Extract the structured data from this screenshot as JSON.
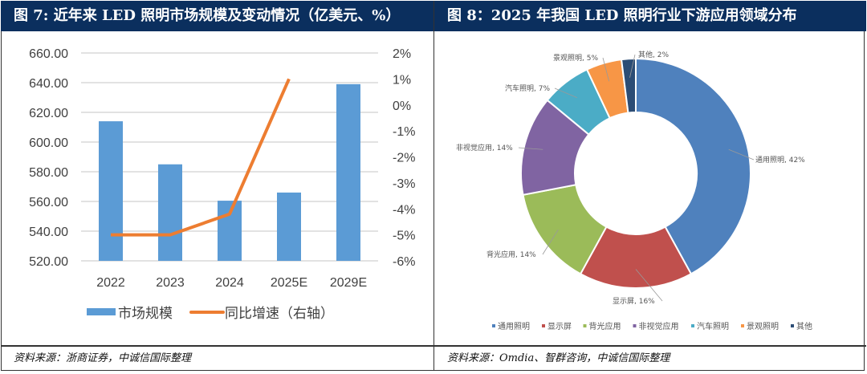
{
  "left": {
    "title": "图 7: 近年来 LED 照明市场规模及变动情况（亿美元、%）",
    "source": "资料来源：浙商证券，中诚信国际整理"
  },
  "right": {
    "title": "图 8：2025 年我国 LED 照明行业下游应用领域分布",
    "source": "资料来源：Omdia、智群咨询，中诚信国际整理"
  },
  "chart_data": [
    {
      "type": "bar+line",
      "categories": [
        "2022",
        "2023",
        "2024",
        "2025E",
        "2029E"
      ],
      "series": [
        {
          "name": "市场规模",
          "type": "bar",
          "axis": "left",
          "color": "#5b9bd5",
          "values": [
            614,
            585,
            560.5,
            566,
            639
          ]
        },
        {
          "name": "同比增速（右轴）",
          "type": "line",
          "axis": "right",
          "color": "#ed7d31",
          "values": [
            -5.0,
            -5.0,
            -4.2,
            1.0,
            null
          ]
        }
      ],
      "y_left": {
        "range": [
          520,
          660
        ],
        "ticks": [
          "520.00",
          "540.00",
          "560.00",
          "580.00",
          "600.00",
          "620.00",
          "640.00",
          "660.00"
        ]
      },
      "y_right": {
        "range": [
          -6,
          2
        ],
        "ticks": [
          "-6%",
          "-5%",
          "-4%",
          "-3%",
          "-2%",
          "-1%",
          "0%",
          "1%",
          "2%"
        ]
      },
      "grid": true,
      "legend": "bottom"
    },
    {
      "type": "pie",
      "donut": true,
      "slices": [
        {
          "name": "通用照明",
          "value": 42,
          "label": "通用照明, 42%",
          "color": "#4f81bd"
        },
        {
          "name": "显示屏",
          "value": 16,
          "label": "显示屏, 16%",
          "color": "#c0504d"
        },
        {
          "name": "背光应用",
          "value": 14,
          "label": "背光应用, 14%",
          "color": "#9bbb59"
        },
        {
          "name": "非视觉应用",
          "value": 14,
          "label": "非视觉应用, 14%",
          "color": "#8064a2"
        },
        {
          "name": "汽车照明",
          "value": 7,
          "label": "汽车照明, 7%",
          "color": "#4bacc6"
        },
        {
          "name": "景观照明",
          "value": 5,
          "label": "景观照明, 5%",
          "color": "#f79646"
        },
        {
          "name": "其他",
          "value": 2,
          "label": "其他, 2%",
          "color": "#2c4d75"
        }
      ],
      "legend": "bottom"
    }
  ]
}
